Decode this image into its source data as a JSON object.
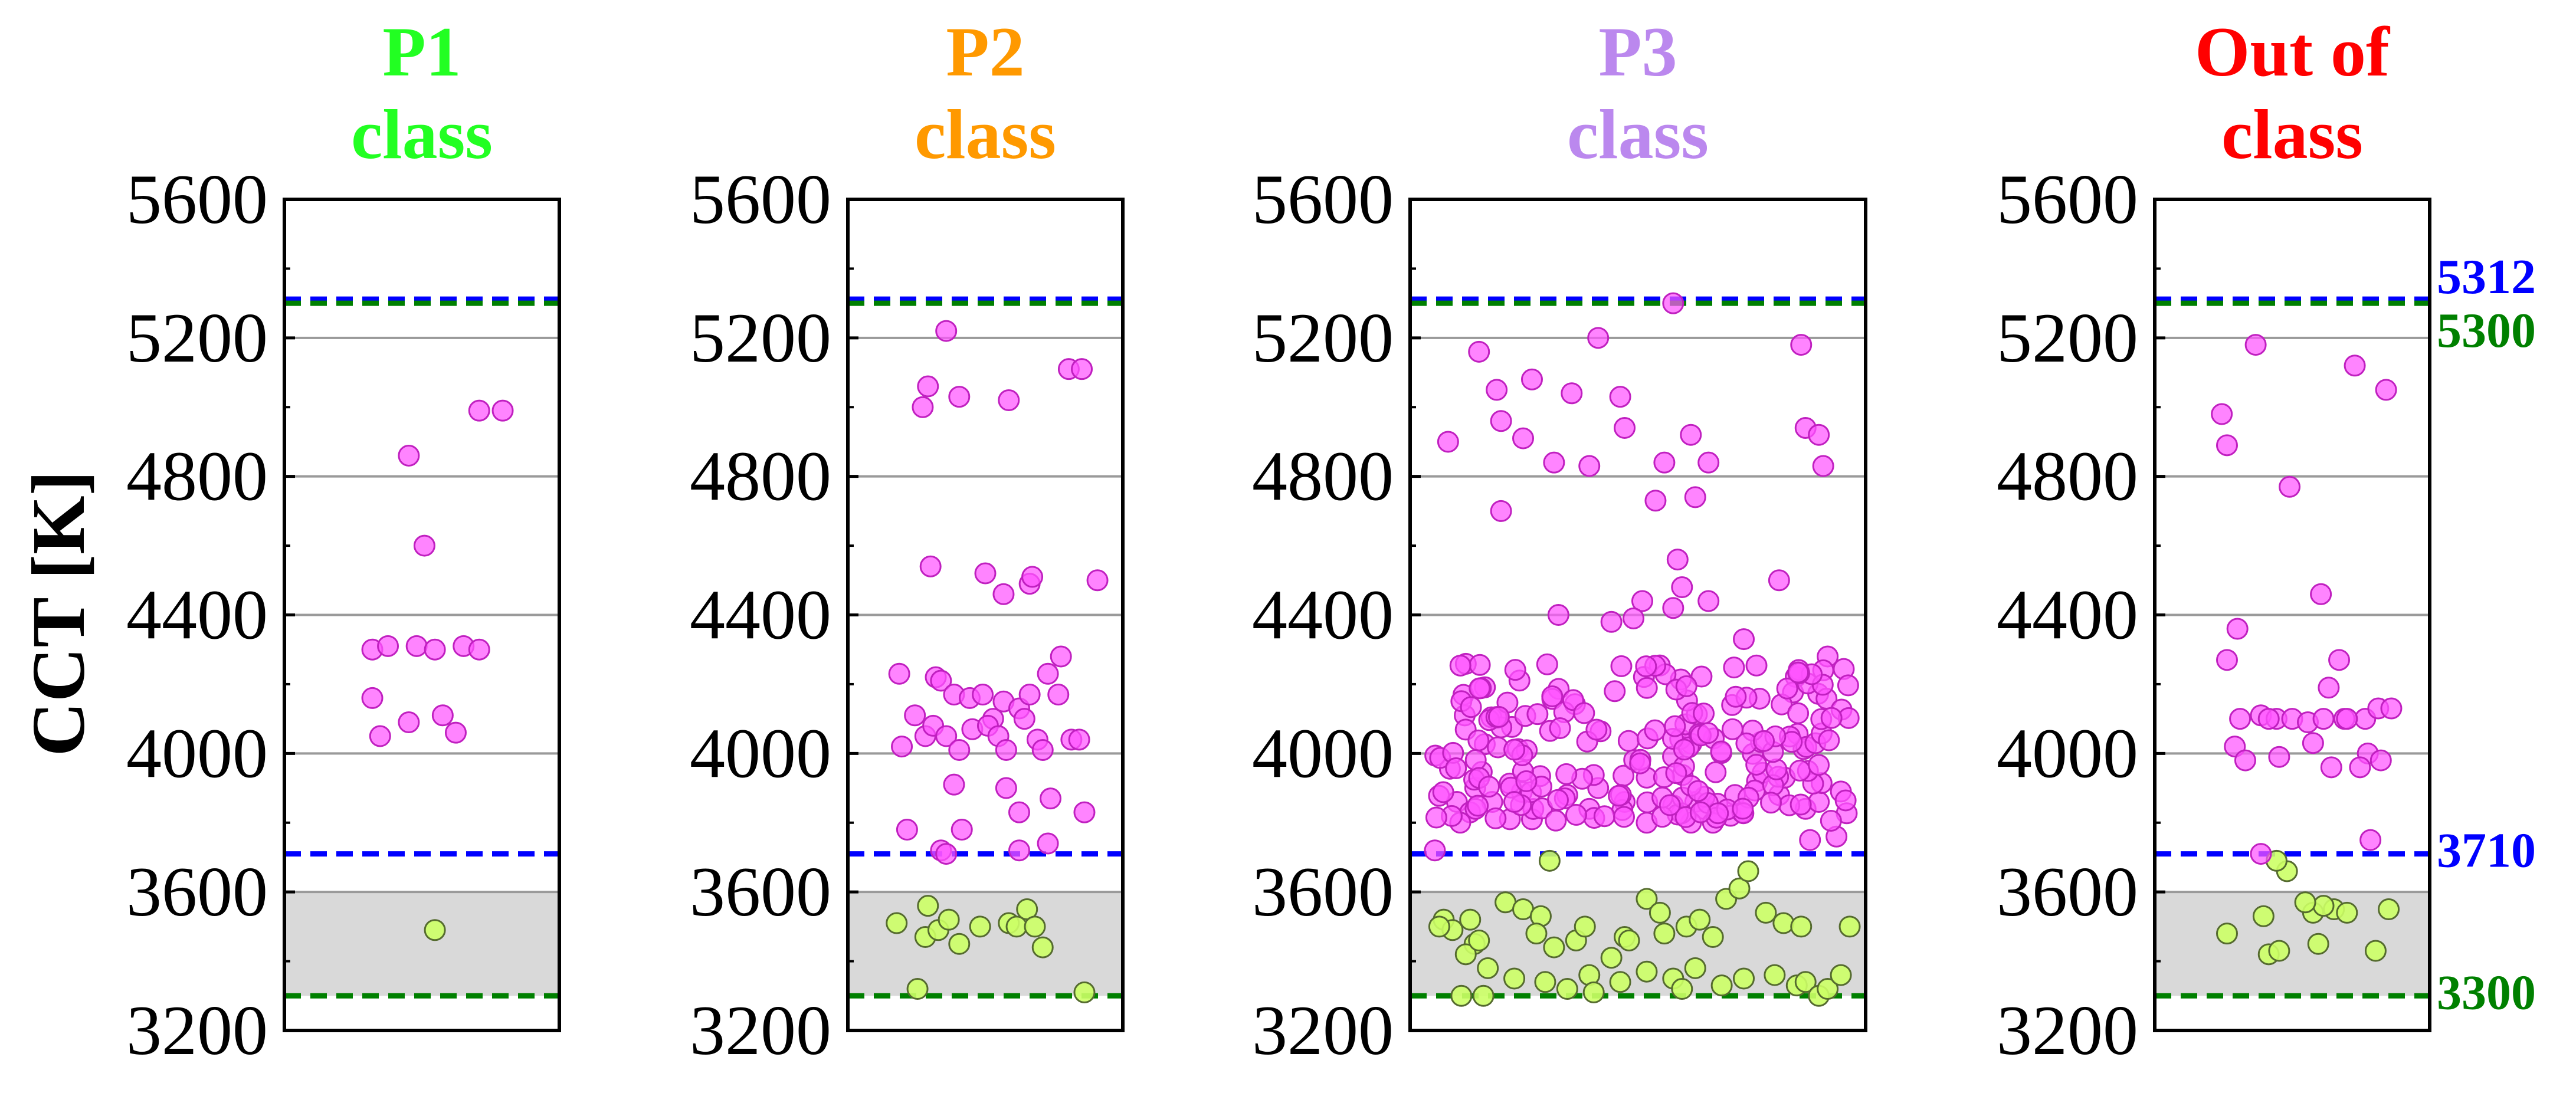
{
  "chart_data": {
    "type": "scatter",
    "ylabel": "CCT [K]",
    "ylim": [
      3200,
      5600
    ],
    "yticks": [
      3200,
      3600,
      4000,
      4400,
      4800,
      5200,
      5600
    ],
    "gridlines": [
      3600,
      4000,
      4400,
      4800,
      5200
    ],
    "shaded_band": [
      3300,
      3600
    ],
    "reference_lines": [
      {
        "value": 5312,
        "label": "5312",
        "color": "#0000ff",
        "style": "dashed"
      },
      {
        "value": 5300,
        "label": "5300",
        "color": "#008000",
        "style": "dashed"
      },
      {
        "value": 3710,
        "label": "3710",
        "color": "#0000ff",
        "style": "dashed"
      },
      {
        "value": 3300,
        "label": "3300",
        "color": "#008000",
        "style": "dashed"
      }
    ],
    "point_colors": {
      "above": "#ff55ff",
      "below": "#ccff66"
    },
    "panels": [
      {
        "title_line1": "P1",
        "title_line2": "class",
        "title_color": "#22ff22",
        "points": [
          [
            0.45,
            4860
          ],
          [
            0.51,
            4600
          ],
          [
            0.72,
            4990
          ],
          [
            0.81,
            4990
          ],
          [
            0.31,
            4300
          ],
          [
            0.37,
            4310
          ],
          [
            0.48,
            4310
          ],
          [
            0.55,
            4300
          ],
          [
            0.66,
            4310
          ],
          [
            0.72,
            4300
          ],
          [
            0.31,
            4160
          ],
          [
            0.45,
            4090
          ],
          [
            0.58,
            4110
          ],
          [
            0.63,
            4060
          ],
          [
            0.34,
            4050
          ],
          [
            0.55,
            3490
          ]
        ]
      },
      {
        "title_line1": "P2",
        "title_line2": "class",
        "title_color": "#ff9900",
        "points": [
          [
            0.26,
            5000
          ],
          [
            0.28,
            5060
          ],
          [
            0.35,
            5220
          ],
          [
            0.4,
            5030
          ],
          [
            0.59,
            5020
          ],
          [
            0.82,
            5110
          ],
          [
            0.87,
            5110
          ],
          [
            0.29,
            4540
          ],
          [
            0.5,
            4520
          ],
          [
            0.57,
            4460
          ],
          [
            0.67,
            4490
          ],
          [
            0.68,
            4510
          ],
          [
            0.93,
            4500
          ],
          [
            0.17,
            4230
          ],
          [
            0.23,
            4110
          ],
          [
            0.31,
            4220
          ],
          [
            0.33,
            4210
          ],
          [
            0.38,
            4170
          ],
          [
            0.44,
            4160
          ],
          [
            0.49,
            4170
          ],
          [
            0.53,
            4100
          ],
          [
            0.57,
            4150
          ],
          [
            0.63,
            4130
          ],
          [
            0.67,
            4170
          ],
          [
            0.74,
            4230
          ],
          [
            0.78,
            4170
          ],
          [
            0.79,
            4280
          ],
          [
            0.18,
            4020
          ],
          [
            0.27,
            4050
          ],
          [
            0.3,
            4080
          ],
          [
            0.35,
            4050
          ],
          [
            0.4,
            4010
          ],
          [
            0.45,
            4070
          ],
          [
            0.51,
            4080
          ],
          [
            0.55,
            4050
          ],
          [
            0.58,
            4010
          ],
          [
            0.65,
            4100
          ],
          [
            0.7,
            4040
          ],
          [
            0.72,
            4010
          ],
          [
            0.83,
            4040
          ],
          [
            0.86,
            4040
          ],
          [
            0.38,
            3910
          ],
          [
            0.58,
            3900
          ],
          [
            0.63,
            3830
          ],
          [
            0.75,
            3870
          ],
          [
            0.88,
            3830
          ],
          [
            0.2,
            3780
          ],
          [
            0.33,
            3720
          ],
          [
            0.35,
            3710
          ],
          [
            0.41,
            3780
          ],
          [
            0.63,
            3720
          ],
          [
            0.74,
            3740
          ],
          [
            0.16,
            3510
          ],
          [
            0.27,
            3470
          ],
          [
            0.28,
            3560
          ],
          [
            0.32,
            3490
          ],
          [
            0.36,
            3520
          ],
          [
            0.4,
            3450
          ],
          [
            0.48,
            3500
          ],
          [
            0.59,
            3510
          ],
          [
            0.62,
            3500
          ],
          [
            0.66,
            3550
          ],
          [
            0.69,
            3500
          ],
          [
            0.72,
            3440
          ],
          [
            0.24,
            3320
          ],
          [
            0.88,
            3310
          ]
        ]
      },
      {
        "title_line1": "P3",
        "title_line2": "class",
        "title_color": "#bb88ee",
        "points": [
          [
            0.07,
            4900
          ],
          [
            0.14,
            5160
          ],
          [
            0.18,
            5050
          ],
          [
            0.19,
            4960
          ],
          [
            0.24,
            4910
          ],
          [
            0.26,
            5080
          ],
          [
            0.31,
            4840
          ],
          [
            0.35,
            5040
          ],
          [
            0.39,
            4830
          ],
          [
            0.41,
            5200
          ],
          [
            0.46,
            5030
          ],
          [
            0.47,
            4940
          ],
          [
            0.58,
            5300
          ],
          [
            0.56,
            4840
          ],
          [
            0.62,
            4920
          ],
          [
            0.66,
            4840
          ],
          [
            0.87,
            5180
          ],
          [
            0.88,
            4940
          ],
          [
            0.91,
            4920
          ],
          [
            0.92,
            4830
          ],
          [
            0.19,
            4700
          ],
          [
            0.54,
            4730
          ],
          [
            0.63,
            4740
          ],
          [
            0.59,
            4560
          ],
          [
            0.6,
            4480
          ],
          [
            0.51,
            4440
          ],
          [
            0.66,
            4440
          ],
          [
            0.82,
            4500
          ],
          [
            0.32,
            4400
          ],
          [
            0.44,
            4380
          ],
          [
            0.49,
            4390
          ],
          [
            0.58,
            4420
          ],
          [
            0.74,
            4330
          ],
          [
            0.93,
            4280
          ],
          [
            0.92,
            4240
          ],
          [
            0.04,
            3720
          ],
          [
            0.09,
            3860
          ],
          [
            0.12,
            3830
          ],
          [
            0.17,
            3860
          ],
          [
            0.21,
            3810
          ],
          [
            0.26,
            3810
          ],
          [
            0.34,
            3880
          ],
          [
            0.39,
            3840
          ],
          [
            0.41,
            3900
          ],
          [
            0.47,
            3860
          ],
          [
            0.52,
            3930
          ],
          [
            0.58,
            3850
          ],
          [
            0.63,
            3860
          ],
          [
            0.65,
            3840
          ],
          [
            0.71,
            3820
          ],
          [
            0.72,
            3880
          ],
          [
            0.77,
            3920
          ],
          [
            0.82,
            3880
          ],
          [
            0.88,
            3840
          ],
          [
            0.91,
            3860
          ],
          [
            0.96,
            3890
          ],
          [
            0.52,
            3800
          ],
          [
            0.67,
            3800
          ],
          [
            0.95,
            3760
          ],
          [
            0.89,
            3750
          ],
          [
            0.06,
            3520
          ],
          [
            0.08,
            3490
          ],
          [
            0.12,
            3520
          ],
          [
            0.13,
            3450
          ],
          [
            0.16,
            3380
          ],
          [
            0.2,
            3570
          ],
          [
            0.24,
            3550
          ],
          [
            0.28,
            3530
          ],
          [
            0.27,
            3480
          ],
          [
            0.31,
            3440
          ],
          [
            0.36,
            3460
          ],
          [
            0.38,
            3500
          ],
          [
            0.39,
            3360
          ],
          [
            0.44,
            3410
          ],
          [
            0.47,
            3470
          ],
          [
            0.52,
            3580
          ],
          [
            0.55,
            3540
          ],
          [
            0.56,
            3480
          ],
          [
            0.61,
            3500
          ],
          [
            0.64,
            3520
          ],
          [
            0.67,
            3470
          ],
          [
            0.7,
            3580
          ],
          [
            0.73,
            3610
          ],
          [
            0.75,
            3660
          ],
          [
            0.79,
            3540
          ],
          [
            0.83,
            3510
          ],
          [
            0.87,
            3500
          ],
          [
            0.1,
            3300
          ],
          [
            0.15,
            3300
          ],
          [
            0.22,
            3350
          ],
          [
            0.29,
            3340
          ],
          [
            0.34,
            3320
          ],
          [
            0.4,
            3310
          ],
          [
            0.46,
            3340
          ],
          [
            0.52,
            3370
          ],
          [
            0.58,
            3350
          ],
          [
            0.63,
            3380
          ],
          [
            0.69,
            3330
          ],
          [
            0.74,
            3350
          ],
          [
            0.81,
            3360
          ],
          [
            0.86,
            3330
          ],
          [
            0.88,
            3340
          ],
          [
            0.91,
            3300
          ],
          [
            0.93,
            3320
          ],
          [
            0.96,
            3360
          ],
          [
            0.98,
            3500
          ],
          [
            0.05,
            3500
          ],
          [
            0.11,
            3420
          ],
          [
            0.14,
            3460
          ],
          [
            0.3,
            3690
          ],
          [
            0.48,
            3460
          ],
          [
            0.6,
            3320
          ]
        ],
        "cloud": {
          "count": 210,
          "x_range": [
            0.04,
            0.98
          ],
          "y_range": [
            3800,
            4260
          ],
          "seed": 7
        }
      },
      {
        "title_line1": "Out of",
        "title_line2": "class",
        "title_color": "#ff0000",
        "points": [
          [
            0.23,
            4980
          ],
          [
            0.25,
            4890
          ],
          [
            0.36,
            5180
          ],
          [
            0.74,
            5120
          ],
          [
            0.86,
            5050
          ],
          [
            0.49,
            4770
          ],
          [
            0.61,
            4460
          ],
          [
            0.29,
            4360
          ],
          [
            0.25,
            4270
          ],
          [
            0.68,
            4270
          ],
          [
            0.3,
            4100
          ],
          [
            0.38,
            4110
          ],
          [
            0.44,
            4100
          ],
          [
            0.5,
            4100
          ],
          [
            0.56,
            4090
          ],
          [
            0.62,
            4100
          ],
          [
            0.7,
            4100
          ],
          [
            0.78,
            4100
          ],
          [
            0.83,
            4130
          ],
          [
            0.88,
            4130
          ],
          [
            0.28,
            4020
          ],
          [
            0.32,
            3980
          ],
          [
            0.45,
            3990
          ],
          [
            0.58,
            4030
          ],
          [
            0.64,
            4190
          ],
          [
            0.71,
            4100
          ],
          [
            0.41,
            4100
          ],
          [
            0.79,
            4000
          ],
          [
            0.84,
            3980
          ],
          [
            0.76,
            3960
          ],
          [
            0.65,
            3960
          ],
          [
            0.8,
            3750
          ],
          [
            0.87,
            3550
          ],
          [
            0.82,
            3430
          ],
          [
            0.66,
            3550
          ],
          [
            0.58,
            3540
          ],
          [
            0.62,
            3560
          ],
          [
            0.55,
            3570
          ],
          [
            0.48,
            3660
          ],
          [
            0.44,
            3690
          ],
          [
            0.38,
            3710
          ],
          [
            0.39,
            3530
          ],
          [
            0.41,
            3420
          ],
          [
            0.45,
            3430
          ],
          [
            0.6,
            3450
          ],
          [
            0.71,
            3540
          ],
          [
            0.25,
            3480
          ]
        ]
      }
    ]
  }
}
